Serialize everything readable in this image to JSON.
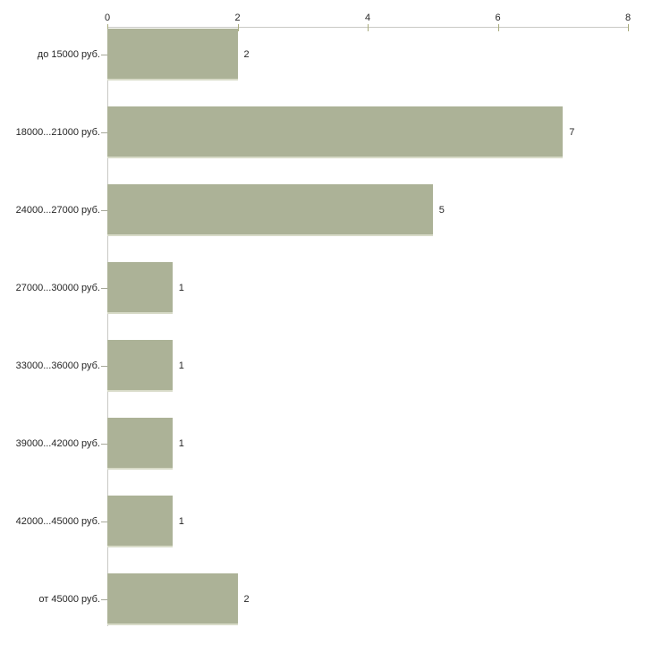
{
  "chart_data": {
    "type": "bar",
    "orientation": "horizontal",
    "title": "",
    "xlabel": "",
    "ylabel": "",
    "categories": [
      "до 15000 руб.",
      "18000...21000 руб.",
      "24000...27000 руб.",
      "27000...30000 руб.",
      "33000...36000 руб.",
      "39000...42000 руб.",
      "42000...45000 руб.",
      "от 45000 руб."
    ],
    "values": [
      2,
      7,
      5,
      1,
      1,
      1,
      1,
      2
    ],
    "value_labels": [
      "2",
      "7",
      "5",
      "1",
      "1",
      "1",
      "1",
      "2"
    ],
    "xlim": [
      0,
      8
    ],
    "x_ticks": [
      0,
      2,
      4,
      6,
      8
    ],
    "x_tick_labels": [
      "0",
      "2",
      "4",
      "6",
      "8"
    ],
    "axis_position": "top",
    "grid": false,
    "legend": false,
    "colors": {
      "bar_fill": "#acb297",
      "bar_bottom_edge": "#d8dbc8",
      "axis_line": "#c9c9c5",
      "x_tick_mark": "#a9ac7d",
      "y_tick_mark": "#a6a89a",
      "text": "#262626",
      "background": "#ffffff"
    }
  }
}
